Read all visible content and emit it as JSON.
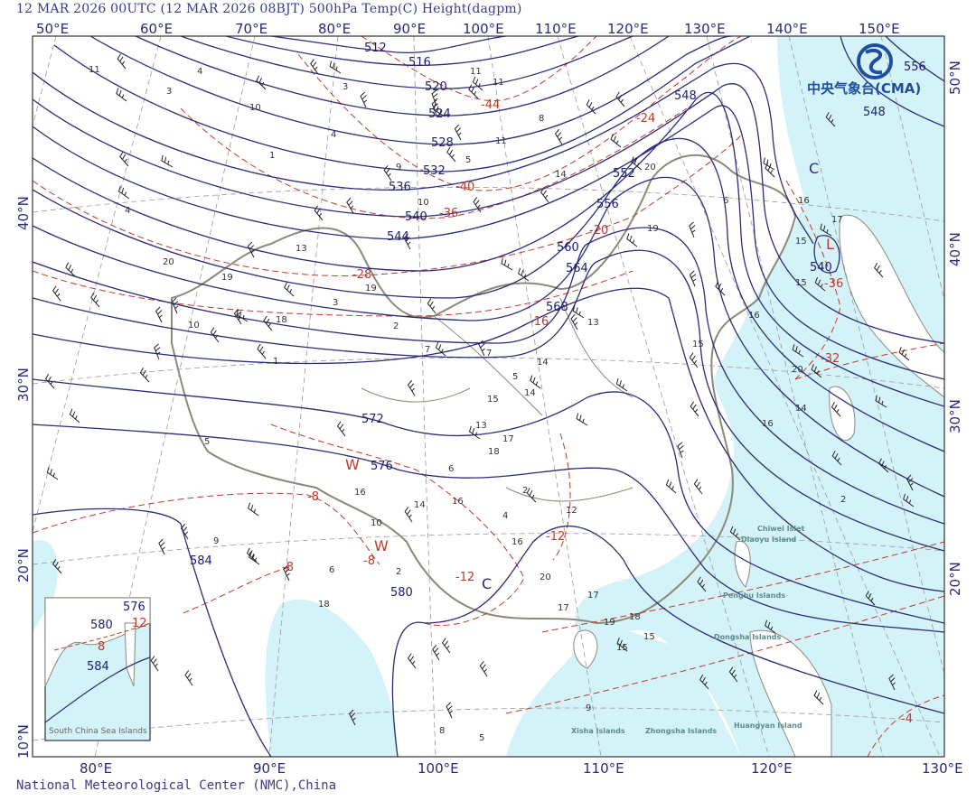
{
  "title": "12 MAR 2026 00UTC (12 MAR 2026 08BJT) 500hPa Temp(C) Height(dagpm)",
  "footer": "National Meteorological Center (NMC),China",
  "logo": {
    "text": "中央气象台(CMA)",
    "color": "#1f4ea0"
  },
  "colors": {
    "sea": "#d4f3f8",
    "land": "#ffffff",
    "height_contour": "#2b2b7a",
    "temp_contour": "#c0392b",
    "border": "#8a8a78",
    "grid": "#999999"
  },
  "axes": {
    "top": [
      "50°E",
      "60°E",
      "70°E",
      "80°E",
      "90°E",
      "100°E",
      "110°E",
      "120°E",
      "130°E",
      "140°E",
      "150°E"
    ],
    "bottom": [
      "80°E",
      "90°E",
      "100°E",
      "110°E",
      "120°E",
      "130°E"
    ],
    "left": [
      "40°N",
      "30°N",
      "20°N",
      "10°N"
    ],
    "right": [
      "50°N",
      "40°N",
      "30°N",
      "20°N"
    ]
  },
  "height_labels": [
    "512",
    "516",
    "520",
    "524",
    "528",
    "532",
    "536",
    "540",
    "544",
    "548",
    "552",
    "556",
    "560",
    "564",
    "568",
    "572",
    "576",
    "580",
    "584",
    "556",
    "548",
    "540"
  ],
  "temp_labels": [
    "-44",
    "-40",
    "-36",
    "-28",
    "-24",
    "-20",
    "-16",
    "-12",
    "-12",
    "-8",
    "-8",
    "-8",
    "-36",
    "-32",
    "-4"
  ],
  "systems": [
    "C",
    "C",
    "L",
    "W",
    "W"
  ],
  "geo_labels": [
    "Chiwei Islet",
    "Diaoyu Island",
    "Penghu Islands",
    "Dongsha Islands",
    "Xisha Islands",
    "Zhongsha Islands",
    "Huangyan Island",
    "South China Sea Islands"
  ],
  "inset": {
    "height_labels": [
      "576",
      "580",
      "584"
    ],
    "temp_labels": [
      "12",
      "8"
    ]
  },
  "station_values": [
    "11",
    "3",
    "4",
    "10",
    "3",
    "4",
    "1",
    "4",
    "20",
    "19",
    "10",
    "18",
    "2",
    "1",
    "13",
    "19",
    "3",
    "9",
    "10",
    "7",
    "5",
    "11",
    "8",
    "11",
    "7",
    "5",
    "6",
    "14",
    "20",
    "6",
    "16",
    "15",
    "15",
    "16",
    "15",
    "16",
    "20",
    "14",
    "13",
    "17",
    "14",
    "15",
    "18",
    "2",
    "16",
    "20",
    "17",
    "19",
    "18",
    "15",
    "15",
    "9",
    "9",
    "16",
    "8",
    "5",
    "10",
    "18",
    "6",
    "14",
    "16",
    "4",
    "17",
    "13",
    "14",
    "12",
    "11",
    "19",
    "5",
    "2",
    "2",
    "17"
  ]
}
